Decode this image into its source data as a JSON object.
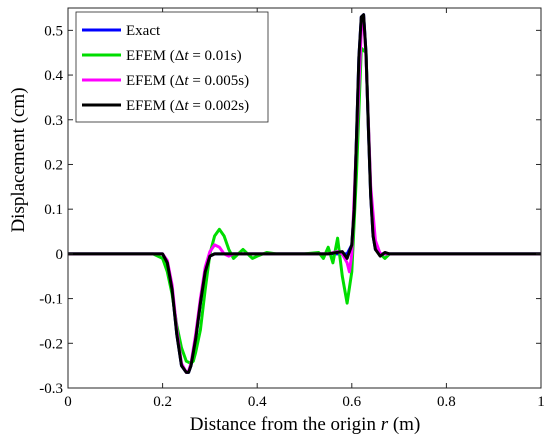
{
  "chart_data": {
    "type": "line",
    "xlabel": "Distance from the origin r (m)",
    "ylabel": "Displacement (cm)",
    "xlim": [
      0,
      1
    ],
    "ylim": [
      -0.3,
      0.55
    ],
    "xticks": [
      0,
      0.2,
      0.4,
      0.6,
      0.8,
      1
    ],
    "xtick_labels": [
      "0",
      "0.2",
      "0.4",
      "0.6",
      "0.8",
      "1"
    ],
    "yticks": [
      -0.3,
      -0.2,
      -0.1,
      0,
      0.1,
      0.2,
      0.3,
      0.4,
      0.5
    ],
    "ytick_labels": [
      "-0.3",
      "-0.2",
      "-0.1",
      "0",
      "0.1",
      "0.2",
      "0.3",
      "0.4",
      "0.5"
    ],
    "grid": false,
    "legend_position": "top-left",
    "series": [
      {
        "name": "Exact",
        "color": "#0000ff",
        "x": [
          0,
          0.2,
          0.21,
          0.22,
          0.23,
          0.24,
          0.25,
          0.255,
          0.26,
          0.27,
          0.28,
          0.29,
          0.3,
          0.31,
          0.4,
          0.59,
          0.6,
          0.605,
          0.61,
          0.615,
          0.62,
          0.625,
          0.63,
          0.635,
          0.64,
          0.645,
          0.65,
          0.66,
          1
        ],
        "y": [
          0,
          0,
          -0.02,
          -0.08,
          -0.18,
          -0.25,
          -0.265,
          -0.265,
          -0.25,
          -0.19,
          -0.11,
          -0.04,
          -0.005,
          0,
          0,
          0,
          0.02,
          0.1,
          0.26,
          0.44,
          0.53,
          0.535,
          0.45,
          0.28,
          0.13,
          0.04,
          0.01,
          0,
          0
        ]
      },
      {
        "name": "EFEM (Δt = 0.01s)",
        "color": "#00dd00",
        "x": [
          0,
          0.18,
          0.2,
          0.21,
          0.22,
          0.23,
          0.24,
          0.25,
          0.26,
          0.265,
          0.27,
          0.28,
          0.29,
          0.3,
          0.31,
          0.32,
          0.33,
          0.34,
          0.35,
          0.36,
          0.37,
          0.38,
          0.39,
          0.4,
          0.42,
          0.44,
          0.5,
          0.53,
          0.54,
          0.55,
          0.56,
          0.57,
          0.58,
          0.59,
          0.6,
          0.61,
          0.62,
          0.63,
          0.64,
          0.65,
          0.66,
          0.67,
          0.68,
          1
        ],
        "y": [
          0,
          0,
          -0.01,
          -0.04,
          -0.09,
          -0.16,
          -0.21,
          -0.24,
          -0.245,
          -0.24,
          -0.22,
          -0.17,
          -0.08,
          0.0,
          0.04,
          0.055,
          0.04,
          0.01,
          -0.01,
          0.0,
          0.01,
          0.0,
          -0.01,
          -0.005,
          0.003,
          0.0,
          0.0,
          0.003,
          -0.01,
          0.015,
          -0.02,
          0.035,
          -0.05,
          -0.11,
          -0.04,
          0.18,
          0.46,
          0.45,
          0.14,
          0.02,
          0.0,
          -0.01,
          0.0,
          0
        ]
      },
      {
        "name": "EFEM (Δt = 0.005s)",
        "color": "#ff00ff",
        "x": [
          0,
          0.2,
          0.21,
          0.22,
          0.23,
          0.24,
          0.25,
          0.255,
          0.26,
          0.27,
          0.28,
          0.29,
          0.3,
          0.31,
          0.32,
          0.33,
          0.34,
          0.35,
          0.4,
          0.55,
          0.57,
          0.58,
          0.59,
          0.595,
          0.6,
          0.61,
          0.62,
          0.625,
          0.63,
          0.64,
          0.65,
          0.66,
          0.67,
          1
        ],
        "y": [
          0,
          0,
          -0.015,
          -0.07,
          -0.17,
          -0.245,
          -0.265,
          -0.262,
          -0.245,
          -0.18,
          -0.1,
          -0.03,
          0.005,
          0.02,
          0.015,
          0.0,
          -0.005,
          0.0,
          0.0,
          0.0,
          0.005,
          0.0,
          -0.02,
          -0.04,
          0.0,
          0.25,
          0.5,
          0.53,
          0.44,
          0.15,
          0.03,
          0.0,
          0.0,
          0
        ]
      },
      {
        "name": "EFEM (Δt = 0.002s)",
        "color": "#000000",
        "x": [
          0,
          0.2,
          0.21,
          0.22,
          0.23,
          0.24,
          0.25,
          0.255,
          0.26,
          0.27,
          0.28,
          0.29,
          0.3,
          0.31,
          0.4,
          0.55,
          0.58,
          0.59,
          0.6,
          0.605,
          0.61,
          0.615,
          0.62,
          0.625,
          0.63,
          0.635,
          0.64,
          0.645,
          0.65,
          0.66,
          0.67,
          0.68,
          1
        ],
        "y": [
          0,
          0,
          -0.02,
          -0.08,
          -0.18,
          -0.25,
          -0.265,
          -0.265,
          -0.25,
          -0.19,
          -0.11,
          -0.04,
          -0.005,
          0,
          0,
          0,
          0.005,
          -0.01,
          0.02,
          0.1,
          0.26,
          0.44,
          0.53,
          0.535,
          0.45,
          0.28,
          0.13,
          0.04,
          0.01,
          -0.005,
          0.003,
          0,
          0
        ]
      }
    ]
  }
}
